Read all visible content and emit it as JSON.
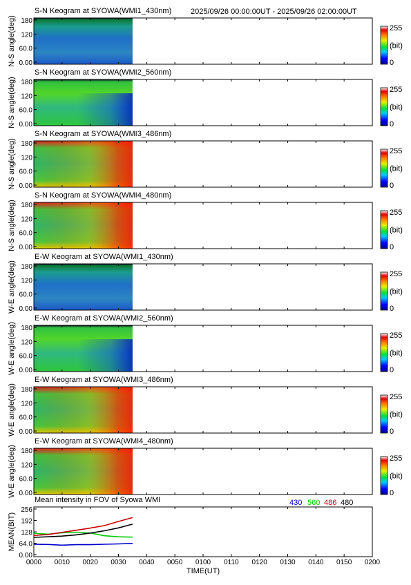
{
  "header": {
    "range_text": "2025/09/26 00:00:00UT - 2025/09/26 02:00:00UT"
  },
  "colorbar": {
    "max_label": "255",
    "unit_label": "(bit)",
    "min_label": "0"
  },
  "keograms": [
    {
      "title": "S-N Keogram at SYOWA(WMI1_430nm)",
      "ylabel": "N-S angle(deg)",
      "style": "blue",
      "data_end_time": "0035"
    },
    {
      "title": "S-N Keogram at SYOWA(WMI2_560nm)",
      "ylabel": "N-S angle(deg)",
      "style": "green",
      "data_end_time": "0035"
    },
    {
      "title": "S-N Keogram at SYOWA(WMI3_486nm)",
      "ylabel": "N-S angle(deg)",
      "style": "red",
      "data_end_time": "0035"
    },
    {
      "title": "S-N Keogram at SYOWA(WMI4_480nm)",
      "ylabel": "N-S angle(deg)",
      "style": "red",
      "data_end_time": "0035"
    },
    {
      "title": "E-W Keogram at SYOWA(WMI1_430nm)",
      "ylabel": "W-E angle(deg)",
      "style": "blue",
      "data_end_time": "0035"
    },
    {
      "title": "E-W Keogram at SYOWA(WMI2_560nm)",
      "ylabel": "W-E angle(deg)",
      "style": "green",
      "data_end_time": "0035"
    },
    {
      "title": "E-W Keogram at SYOWA(WMI3_486nm)",
      "ylabel": "W-E angle(deg)",
      "style": "red",
      "data_end_time": "0035"
    },
    {
      "title": "E-W Keogram at SYOWA(WMI4_480nm)",
      "ylabel": "W-E angle(deg)",
      "style": "red",
      "data_end_time": "0035"
    }
  ],
  "keogram_yticks": [
    "180",
    "120",
    "60.0",
    "0.00"
  ],
  "chart_data": {
    "type": "line",
    "title": "Mean intensity in FOV of Syowa WMI",
    "xlabel": "TIME(UT)",
    "ylabel": "MEAN(BIT)",
    "x_ticks": [
      "0000",
      "0010",
      "0020",
      "0030",
      "0040",
      "0050",
      "0100",
      "0110",
      "0120",
      "0130",
      "0140",
      "0150",
      "0200"
    ],
    "x_range": [
      "0000",
      "0200"
    ],
    "y_ticks": [
      "256",
      "192",
      "128",
      "64.0",
      "0.00"
    ],
    "ylim": [
      0,
      256
    ],
    "x": [
      "0000",
      "0005",
      "0010",
      "0015",
      "0020",
      "0025",
      "0030",
      "0035"
    ],
    "series": [
      {
        "name": "430",
        "color": "#0000cc",
        "values": [
          58,
          57,
          53,
          56,
          56,
          58,
          60,
          63
        ]
      },
      {
        "name": "560",
        "color": "#00cc00",
        "values": [
          120,
          115,
          122,
          126,
          121,
          106,
          100,
          98
        ]
      },
      {
        "name": "486",
        "color": "#cc0000",
        "values": [
          108,
          113,
          125,
          137,
          149,
          163,
          186,
          208
        ]
      },
      {
        "name": "480",
        "color": "#000000",
        "values": [
          97,
          100,
          104,
          111,
          121,
          134,
          150,
          171
        ]
      }
    ],
    "grid": false
  }
}
